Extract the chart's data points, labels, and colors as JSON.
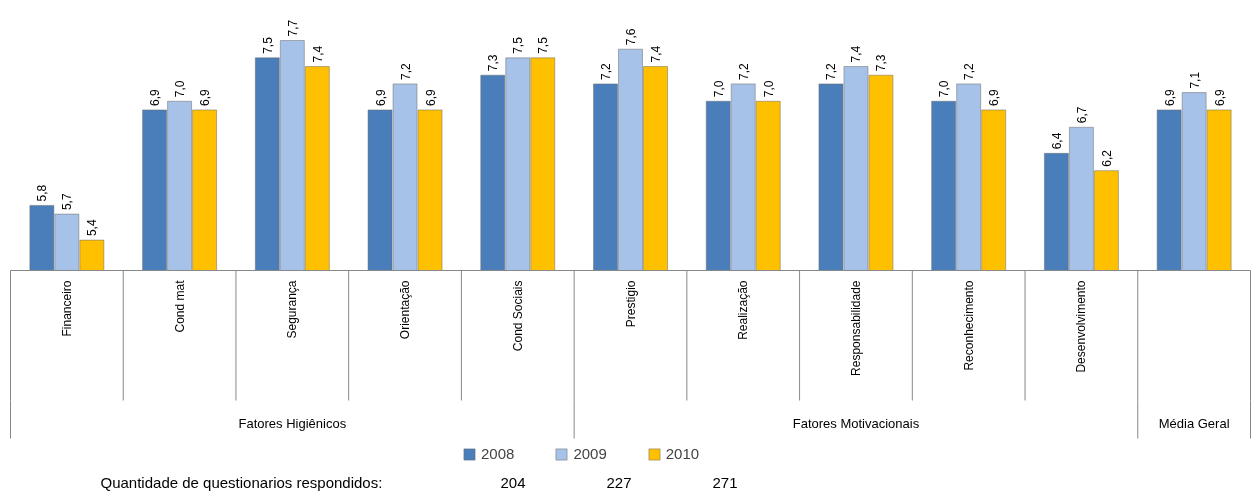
{
  "chart_data": {
    "type": "bar",
    "categories": [
      "Financeiro",
      "Cond mat",
      "Segurança",
      "Orientação",
      "Cond Sociais",
      "Prestigio",
      "Realização",
      "Responsabilidade",
      "Reconhecimento",
      "Desenvolvimento",
      null
    ],
    "series": [
      {
        "name": "2008",
        "color": "#4a7ebb",
        "values": [
          5.8,
          6.9,
          7.5,
          6.9,
          7.3,
          7.2,
          7.0,
          7.2,
          7.0,
          6.4,
          6.9
        ],
        "value_labels": [
          "5,8",
          "6,9",
          "7,5",
          "6,9",
          "7,3",
          "7,2",
          "7,0",
          "7,2",
          "7,0",
          "6,4",
          "6,9"
        ]
      },
      {
        "name": "2009",
        "color": "#a6c2e8",
        "values": [
          5.7,
          7.0,
          7.7,
          7.2,
          7.5,
          7.6,
          7.2,
          7.4,
          7.2,
          6.7,
          7.1
        ],
        "value_labels": [
          "5,7",
          "7,0",
          "7,7",
          "7,2",
          "7,5",
          "7,6",
          "7,2",
          "7,4",
          "7,2",
          "6,7",
          "7,1"
        ]
      },
      {
        "name": "2010",
        "color": "#ffc000",
        "values": [
          5.4,
          6.9,
          7.4,
          6.9,
          7.5,
          7.4,
          7.0,
          7.3,
          6.9,
          6.2,
          6.9
        ],
        "value_labels": [
          "5,4",
          "6,9",
          "7,4",
          "6,9",
          "7,5",
          "7,4",
          "7,0",
          "7,3",
          "6,9",
          "6,2",
          "6,9"
        ]
      }
    ],
    "ylim": [
      5.05,
      7.7
    ],
    "legend": "bottom",
    "grid": false,
    "annotations": [
      "Fatores Higiênicos",
      "Fatores Motivacionais",
      "Média Geral",
      "Quantidade de questionarios respondidos:",
      "204",
      "227",
      "271"
    ]
  }
}
